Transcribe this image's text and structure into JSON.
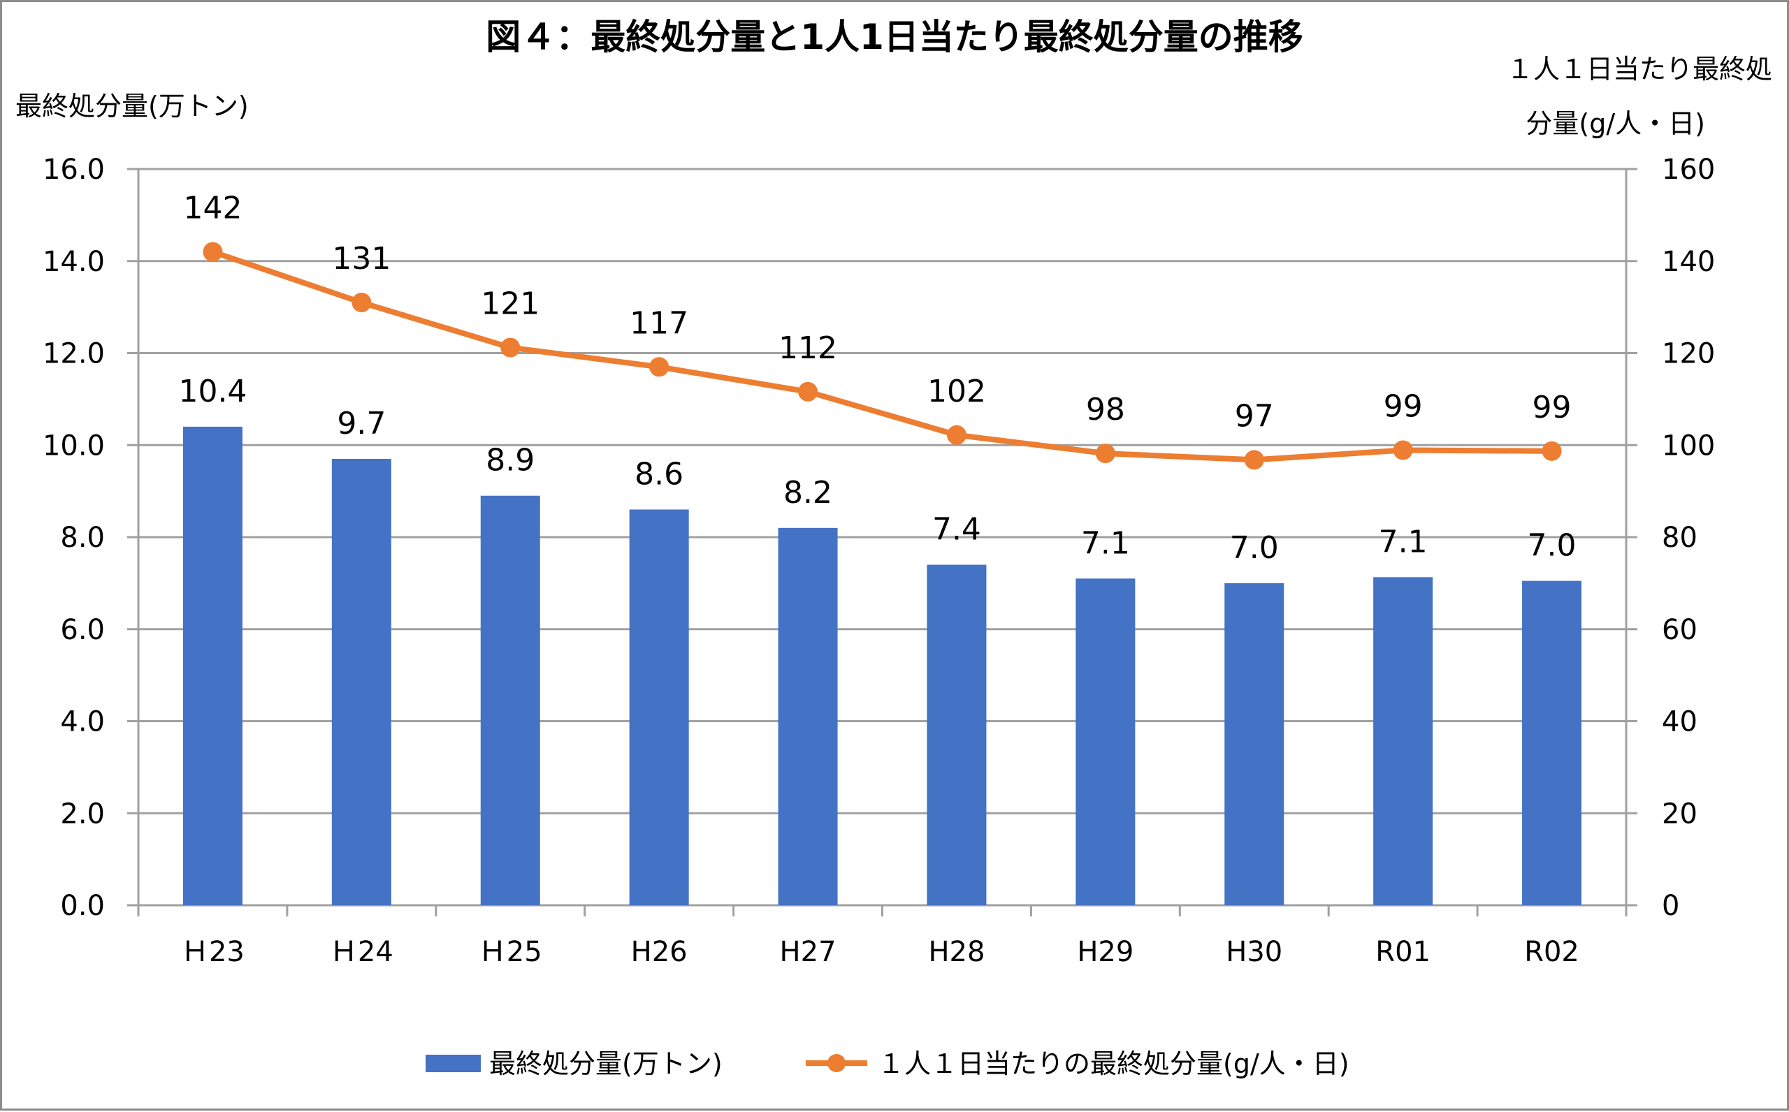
{
  "chart_data": {
    "type": "bar+line",
    "title": "図４：最終処分量と1人1日当たり最終処分量の推移",
    "categories": [
      "Ｈ23",
      "Ｈ24",
      "Ｈ25",
      "H26",
      "H27",
      "H28",
      "H29",
      "H30",
      "R01",
      "R02"
    ],
    "y_left": {
      "label": "最終処分量(万トン)",
      "range": [
        0,
        16
      ],
      "ticks": [
        "0.0",
        "2.0",
        "4.0",
        "6.0",
        "8.0",
        "10.0",
        "12.0",
        "14.0",
        "16.0"
      ],
      "tick_values": [
        0,
        2,
        4,
        6,
        8,
        10,
        12,
        14,
        16
      ]
    },
    "y_right": {
      "label_line1": "１人１日当たり最終処",
      "label_line2": "分量(g/人・日)",
      "range": [
        0,
        160
      ],
      "ticks": [
        "0",
        "20",
        "40",
        "60",
        "80",
        "100",
        "120",
        "140",
        "160"
      ],
      "tick_values": [
        0,
        20,
        40,
        60,
        80,
        100,
        120,
        140,
        160
      ]
    },
    "grid": true,
    "series": [
      {
        "name": "最終処分量(万トン)",
        "type": "bar",
        "axis": "left",
        "color": "#4472C4",
        "values": [
          10.4,
          9.7,
          8.9,
          8.6,
          8.2,
          7.4,
          7.1,
          7.0,
          7.13,
          7.05
        ],
        "labels": [
          "10.4",
          "9.7",
          "8.9",
          "8.6",
          "8.2",
          "7.4",
          "7.1",
          "7.0",
          "7.1",
          "7.0"
        ]
      },
      {
        "name": "１人１日当たりの最終処分量(g/人・日)",
        "type": "line",
        "axis": "right",
        "color": "#ED7D31",
        "values": [
          142,
          131,
          121.2,
          117,
          111.6,
          102.2,
          98.2,
          96.8,
          98.9,
          98.7
        ],
        "labels": [
          "142",
          "131",
          "121",
          "117",
          "112",
          "102",
          "98",
          "97",
          "99",
          "99"
        ]
      }
    ],
    "legend_position": "bottom"
  }
}
